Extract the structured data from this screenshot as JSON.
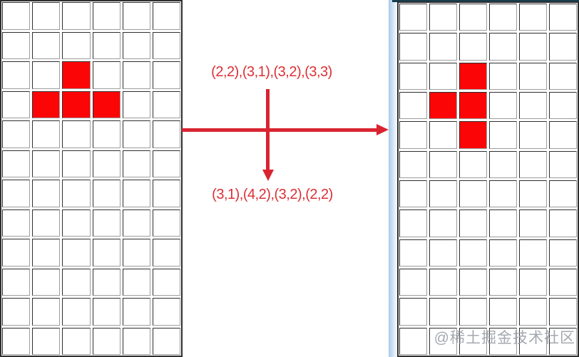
{
  "labels": {
    "before": "(2,2),(3,1),(3,2),(3,3)",
    "after": "(3,1),(4,2),(3,2),(2,2)"
  },
  "watermark": "@稀土掘金技术社区",
  "icons": {
    "horizontal_arrow": "arrow-right-icon",
    "vertical_arrow": "arrow-down-icon"
  },
  "grids": {
    "rows": 12,
    "cols": 6,
    "left": {
      "title": "before-rotation",
      "red_cells": [
        [
          2,
          2
        ],
        [
          3,
          1
        ],
        [
          3,
          2
        ],
        [
          3,
          3
        ]
      ]
    },
    "right": {
      "title": "after-rotation",
      "red_cells": [
        [
          2,
          2
        ],
        [
          3,
          1
        ],
        [
          3,
          2
        ],
        [
          4,
          2
        ]
      ]
    }
  },
  "colors": {
    "cell_red": "#fb0507",
    "arrow_red": "#d92430",
    "text_red": "#dc2f34",
    "grid_border_dark": "#2f2f2f",
    "grid_border_light": "#9d9d9d",
    "panel_top_navy": "#163d52",
    "panel_edge_blue": "#a9c9e6"
  }
}
